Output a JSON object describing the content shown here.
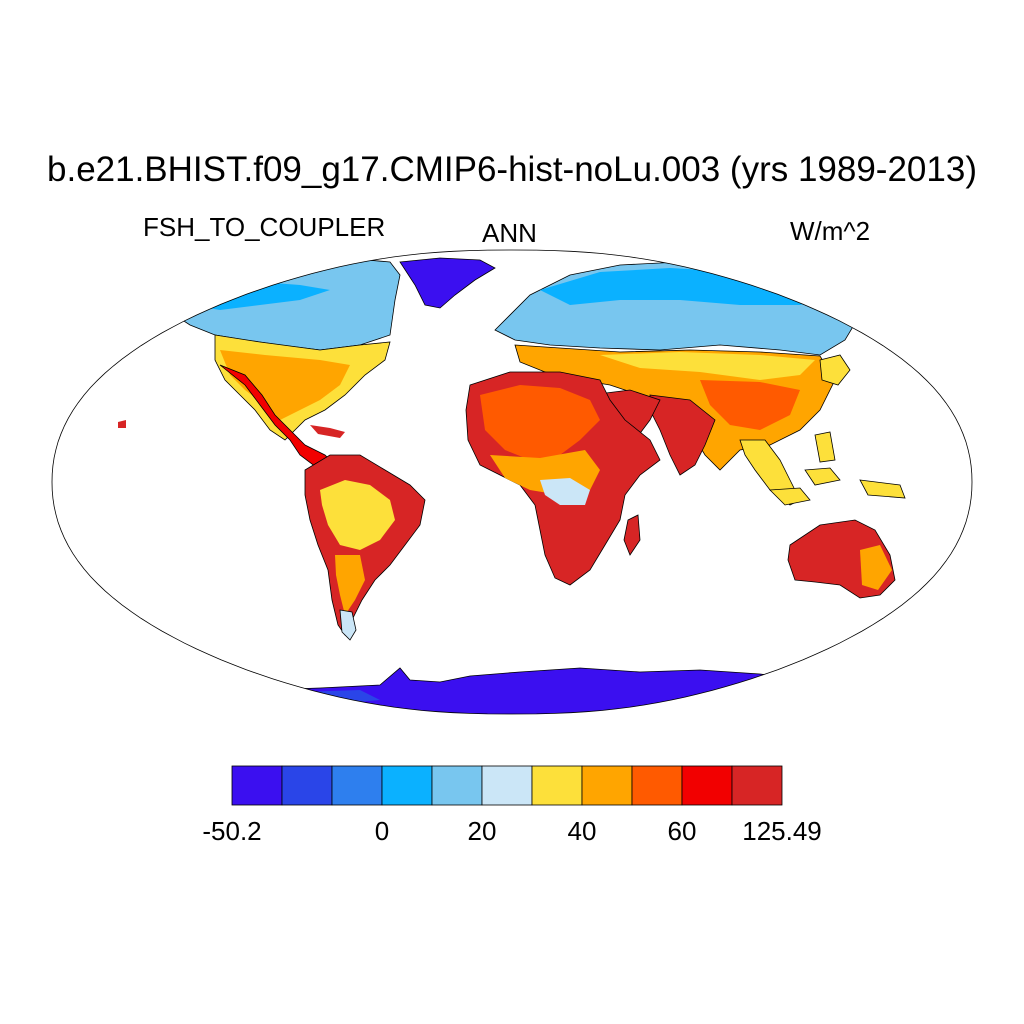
{
  "title": "b.e21.BHIST.f09_g17.CMIP6-hist-noLu.003 (yrs 1989-2013)",
  "variable": "FSH_TO_COUPLER",
  "season": "ANN",
  "units": "W/m^2",
  "projection": "robinson",
  "colorbar": {
    "colors": [
      "#3b0ff0",
      "#2a45e8",
      "#2e7fee",
      "#0bb1ff",
      "#78c6ef",
      "#cbe6f7",
      "#fde03a",
      "#ffa500",
      "#ff5a00",
      "#f20000",
      "#d72525"
    ],
    "tick_labels": [
      "-50.2",
      "0",
      "20",
      "40",
      "60",
      "125.49"
    ]
  },
  "map_colors": {
    "ocean": "#ffffff",
    "frame": "#000000",
    "coast": "#000000"
  }
}
